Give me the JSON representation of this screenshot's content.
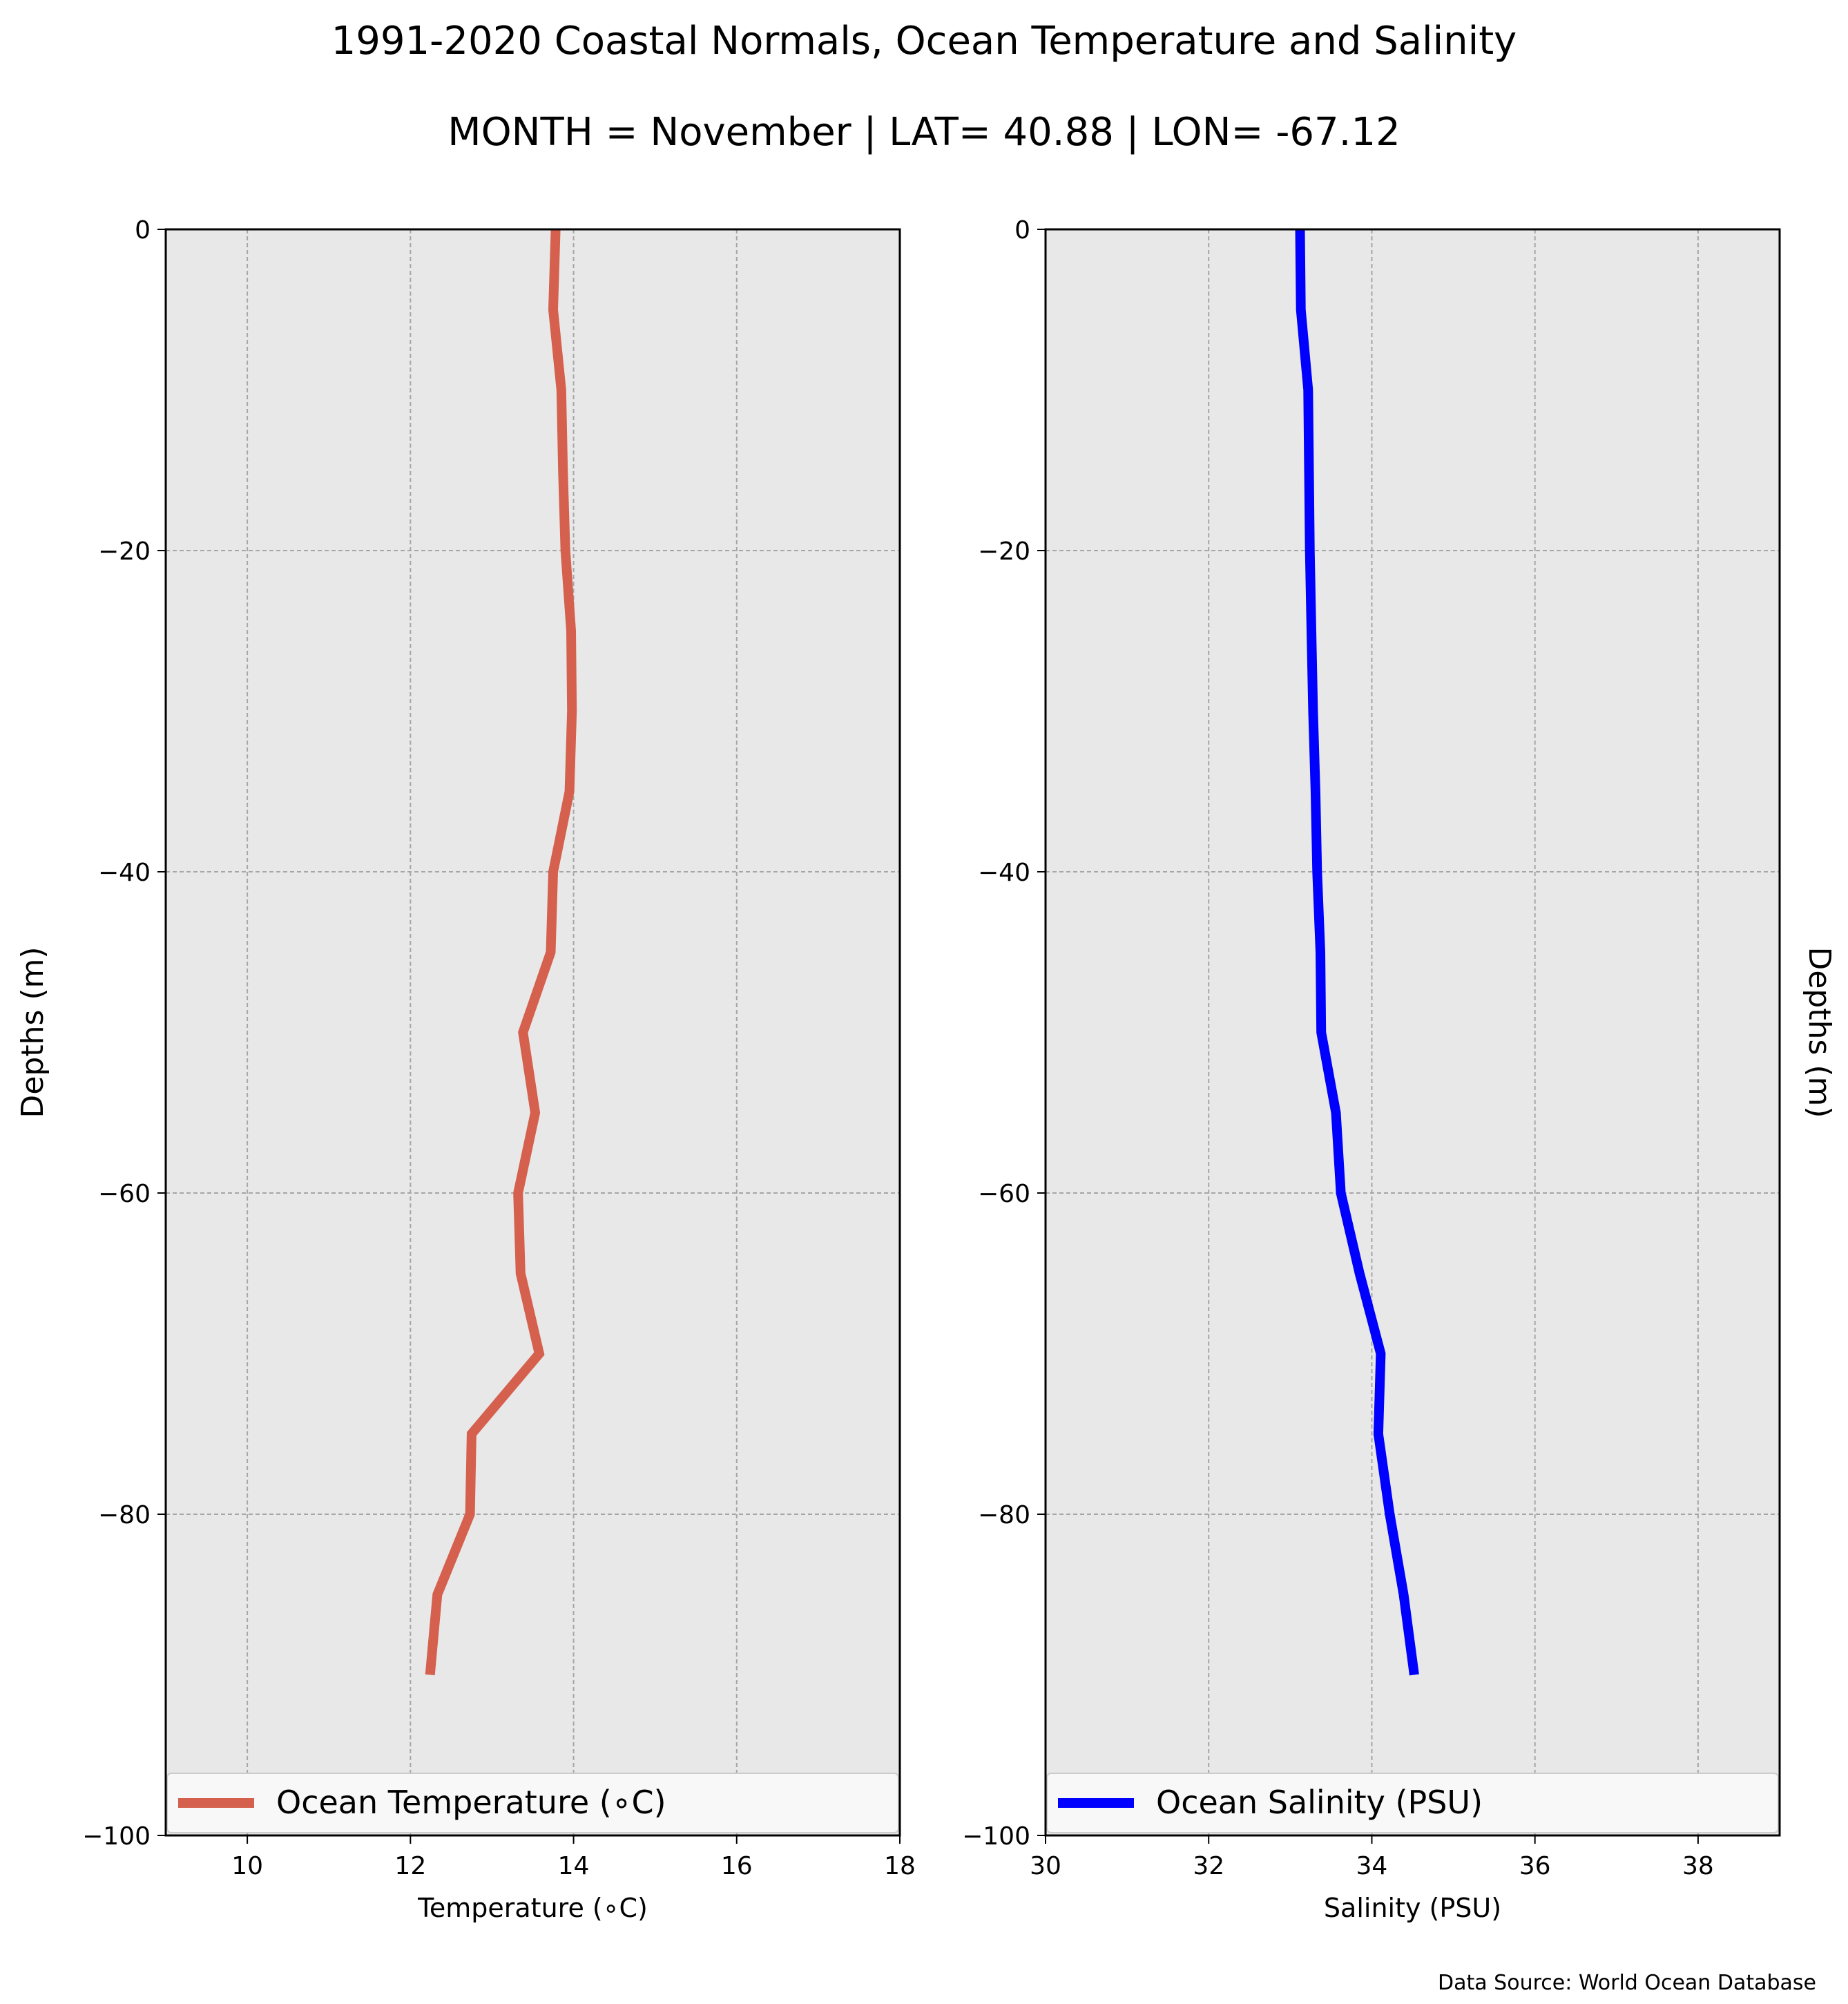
{
  "page": {
    "title": "1991-2020 Coastal Normals, Ocean Temperature and Salinity",
    "subtitle": "MONTH = November | LAT= 40.88 | LON= -67.12",
    "source": "Data Source: World Ocean Database"
  },
  "chart_data": [
    {
      "type": "line",
      "xlabel": "Temperature (∘C)",
      "ylabel": "Depths (m)",
      "xlim": [
        9,
        18
      ],
      "ylim": [
        -100,
        0
      ],
      "x_ticks": [
        10,
        12,
        14,
        16,
        18
      ],
      "y_ticks": [
        0,
        -20,
        -40,
        -60,
        -80,
        -100
      ],
      "x_tick_labels": [
        "10",
        "12",
        "14",
        "16",
        "18"
      ],
      "y_tick_labels": [
        "0",
        "−20",
        "−40",
        "−60",
        "−80",
        "−100"
      ],
      "grid": true,
      "legend_position": "bottom",
      "series": [
        {
          "name": "Ocean Temperature (∘C)",
          "color": "#d4604d",
          "depth": [
            0,
            -5,
            -10,
            -15,
            -20,
            -25,
            -30,
            -35,
            -40,
            -45,
            -50,
            -55,
            -60,
            -65,
            -70,
            -75,
            -80,
            -85,
            -90
          ],
          "values": [
            13.78,
            13.75,
            13.85,
            13.87,
            13.9,
            13.97,
            13.98,
            13.95,
            13.75,
            13.72,
            13.38,
            13.53,
            13.32,
            13.35,
            13.58,
            12.75,
            12.73,
            12.33,
            12.24
          ]
        }
      ]
    },
    {
      "type": "line",
      "xlabel": "Salinity (PSU)",
      "ylabel": "Depths (m)",
      "xlim": [
        30,
        39
      ],
      "ylim": [
        -100,
        0
      ],
      "x_ticks": [
        30,
        32,
        34,
        36,
        38
      ],
      "y_ticks": [
        0,
        -20,
        -40,
        -60,
        -80,
        -100
      ],
      "x_tick_labels": [
        "30",
        "32",
        "34",
        "36",
        "38"
      ],
      "y_tick_labels": [
        "0",
        "−20",
        "−40",
        "−60",
        "−80",
        "−100"
      ],
      "grid": true,
      "legend_position": "bottom",
      "series": [
        {
          "name": "Ocean Salinity (PSU)",
          "color": "#0000ff",
          "depth": [
            0,
            -5,
            -10,
            -15,
            -20,
            -25,
            -30,
            -35,
            -40,
            -45,
            -50,
            -55,
            -60,
            -65,
            -70,
            -75,
            -80,
            -85,
            -90
          ],
          "values": [
            33.12,
            33.13,
            33.22,
            33.23,
            33.24,
            33.26,
            33.28,
            33.31,
            33.33,
            33.37,
            33.38,
            33.56,
            33.62,
            33.85,
            34.11,
            34.08,
            34.22,
            34.39,
            34.52
          ]
        }
      ]
    }
  ]
}
